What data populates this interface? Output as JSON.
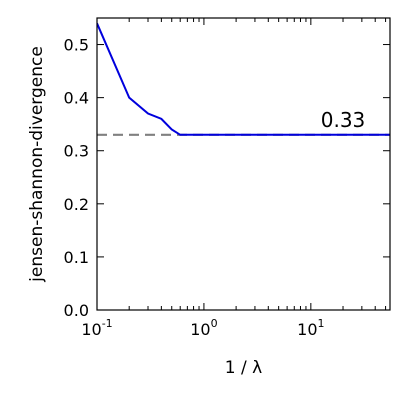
{
  "chart_data": {
    "type": "line",
    "title": "",
    "xlabel": "1 / λ",
    "ylabel": "jensen-shannon-divergence",
    "xscale": "log",
    "xlim": [
      0.1,
      55
    ],
    "ylim": [
      0.0,
      0.55
    ],
    "grid": false,
    "legend": "none",
    "x_ticks": [
      {
        "value": 0.1,
        "base": "10",
        "exp": "-1"
      },
      {
        "value": 1,
        "base": "10",
        "exp": "0"
      },
      {
        "value": 10,
        "base": "10",
        "exp": "1"
      }
    ],
    "y_ticks": [
      {
        "value": 0.0,
        "label": "0.0"
      },
      {
        "value": 0.1,
        "label": "0.1"
      },
      {
        "value": 0.2,
        "label": "0.2"
      },
      {
        "value": 0.3,
        "label": "0.3"
      },
      {
        "value": 0.4,
        "label": "0.4"
      },
      {
        "value": 0.5,
        "label": "0.5"
      }
    ],
    "series": [
      {
        "color": "#0000dd",
        "style": "solid",
        "x": [
          0.1,
          0.2,
          0.3,
          0.4,
          0.5,
          0.6,
          1,
          2,
          5,
          10,
          20,
          55
        ],
        "y": [
          0.54,
          0.4,
          0.37,
          0.36,
          0.34,
          0.33,
          0.33,
          0.33,
          0.33,
          0.33,
          0.33,
          0.33
        ]
      }
    ],
    "reference_line": {
      "y": 0.33,
      "color": "#808080",
      "style": "dashed"
    },
    "annotations": [
      {
        "text": "0.33",
        "x": 20,
        "y": 0.345
      }
    ]
  }
}
